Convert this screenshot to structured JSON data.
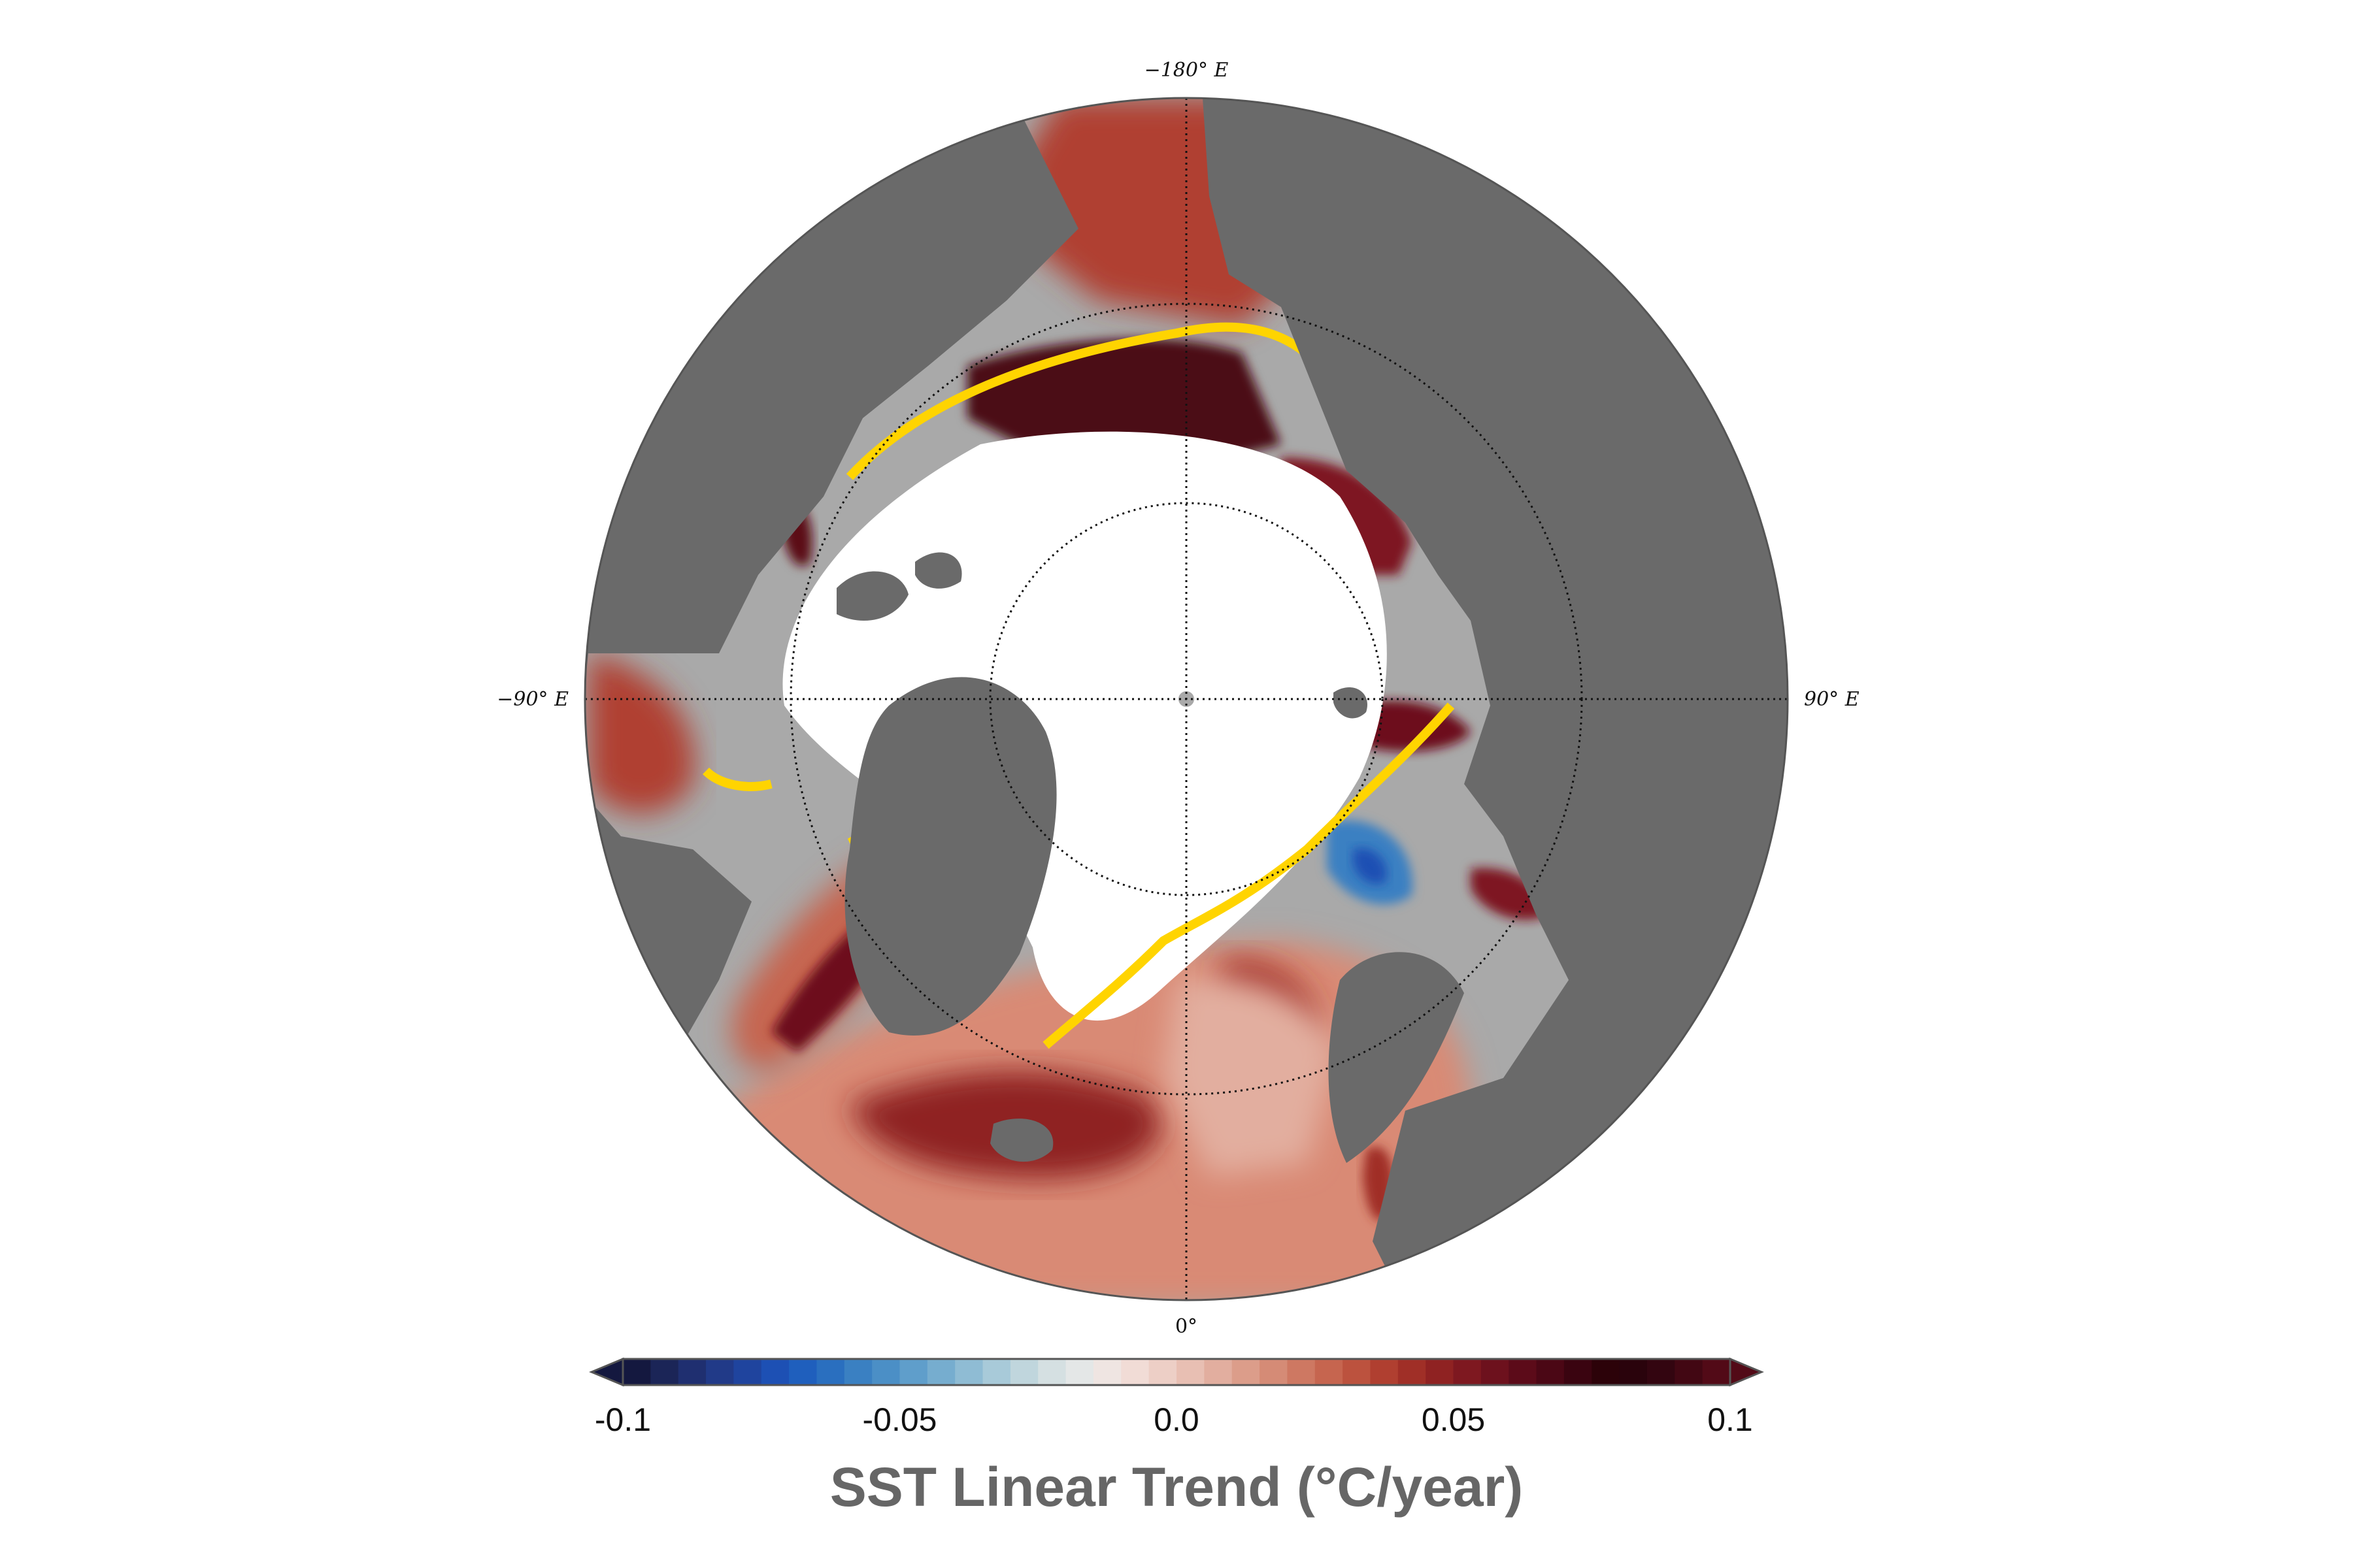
{
  "map": {
    "projection": "north-polar-stereographic",
    "longitude_labels": {
      "top": "−180° E",
      "left": "−90° E",
      "right": "90° E",
      "bottom": "0°"
    },
    "colors": {
      "land": "#6a6a6a",
      "sea_ice": "#ffffff",
      "no_data_ocean": "#a9a9a9",
      "ice_edge": "#ffd400",
      "pole_marker": "#a9a9a9",
      "borders": "#b0b0b0"
    }
  },
  "colorbar": {
    "min": -0.1,
    "max": 0.1,
    "levels": 40,
    "extend": "both",
    "tick_labels": [
      "-0.1",
      "-0.05",
      "0.0",
      "0.05",
      "0.1"
    ],
    "label": "SST Linear Trend (°C/year)",
    "colors": [
      "#14183f",
      "#1b2557",
      "#1f2f70",
      "#213a88",
      "#1f449e",
      "#1d50b4",
      "#1f5fbd",
      "#2a6fbf",
      "#3a80c2",
      "#4b8fc6",
      "#5f9ecb",
      "#76adcf",
      "#8fbcd4",
      "#a8cad9",
      "#c0d6dd",
      "#d5e0e2",
      "#e4e7e7",
      "#efe5e2",
      "#f1dcd6",
      "#edcfc6",
      "#e8bfb3",
      "#e2ae9f",
      "#dc9d8a",
      "#d58b76",
      "#ce7862",
      "#c6654f",
      "#bc523e",
      "#b03f30",
      "#a02f27",
      "#8f2222",
      "#7e1820",
      "#6d111d",
      "#5c0b19",
      "#4b0715",
      "#3a0410",
      "#2c0209",
      "#2a030c",
      "#330510",
      "#420713",
      "#520a17"
    ]
  }
}
